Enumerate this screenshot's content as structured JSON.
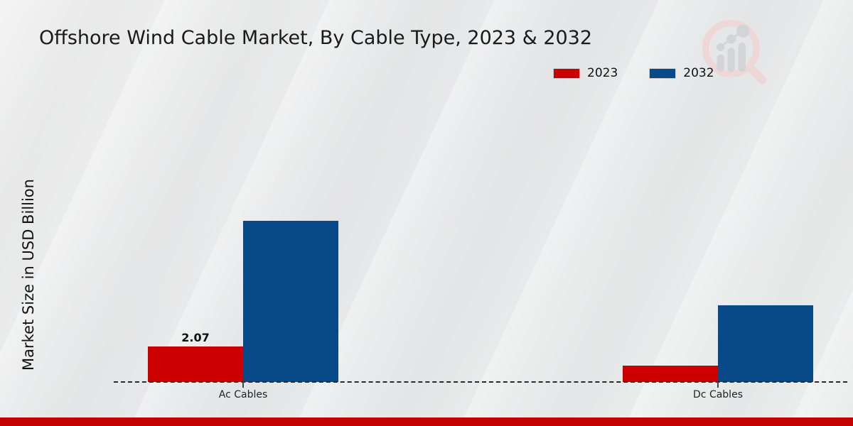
{
  "title": "Offshore Wind Cable Market, By Cable Type, 2023 & 2032",
  "legend": {
    "items": [
      {
        "label": "2023",
        "color": "#cc0000"
      },
      {
        "label": "2032",
        "color": "#084a88"
      }
    ]
  },
  "watermark": {
    "icon": "magnifier-bar-chart-logo",
    "ring_color": "#eed7d7",
    "bars_color": "#d3d4d7"
  },
  "footer": {
    "bar_color": "#c40000"
  },
  "chart_data": {
    "type": "bar",
    "title": "Offshore Wind Cable Market, By Cable Type, 2023 & 2032",
    "xlabel": "",
    "ylabel": "Market Size in USD Billion",
    "categories": [
      "Ac Cables",
      "Dc Cables"
    ],
    "series": [
      {
        "name": "2023",
        "color": "#cc0000",
        "values": [
          2.07,
          0.95
        ],
        "labels": [
          "2.07",
          ""
        ]
      },
      {
        "name": "2032",
        "color": "#084a88",
        "values": [
          9.4,
          4.47
        ],
        "labels": [
          "",
          ""
        ]
      }
    ],
    "ylim": [
      0,
      12
    ],
    "grid": false,
    "legend_position": "top-right",
    "baseline_style": "dashed",
    "data_label_shown": "only Ac Cables 2023 (2.07)"
  }
}
